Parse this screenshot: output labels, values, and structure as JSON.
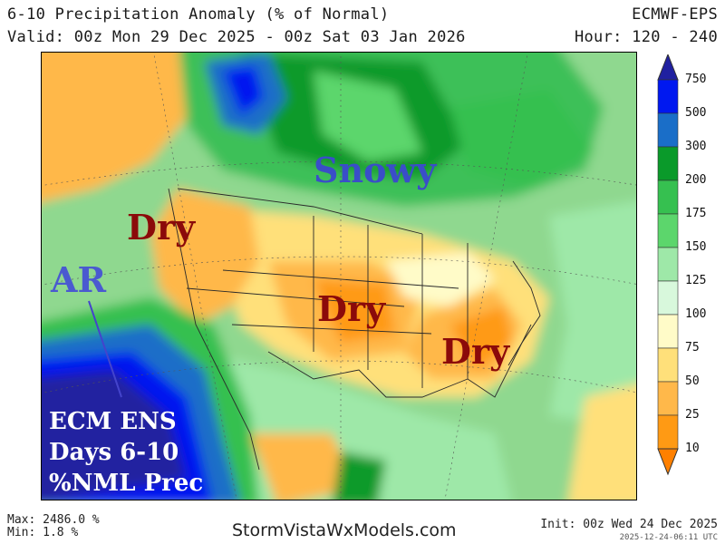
{
  "header": {
    "title": "6-10 Precipitation Anomaly (% of Normal)",
    "model": "ECMWF-EPS",
    "valid": "Valid: 00z Mon 29 Dec 2025 - 00z Sat 03 Jan 2026",
    "hour": "Hour: 120 - 240"
  },
  "annotations": {
    "snowy": "Snowy",
    "dry_west": "Dry",
    "dry_central": "Dry",
    "dry_southeast": "Dry",
    "ar": "AR",
    "ens_line1": "ECM ENS",
    "ens_line2": "Days 6-10",
    "ens_line3": "%NML Prec"
  },
  "colorbar": {
    "levels": [
      "750",
      "500",
      "300",
      "200",
      "175",
      "150",
      "125",
      "100",
      "75",
      "50",
      "25",
      "10"
    ],
    "colors": [
      "#2020a0",
      "#0018f0",
      "#1a6ec8",
      "#0a9a2a",
      "#36c050",
      "#5cd66c",
      "#9ee8a8",
      "#d8f8dc",
      "#fffbc8",
      "#ffe07a",
      "#ffb84a",
      "#ff9a14",
      "#ff8000"
    ]
  },
  "footer": {
    "max": "Max: 2486.0 %",
    "min": "Min: 1.8 %",
    "site": "StormVistaWxModels.com",
    "init": "Init: 00z Wed 24 Dec 2025",
    "stamp": "2025-12-24-06:11 UTC"
  }
}
